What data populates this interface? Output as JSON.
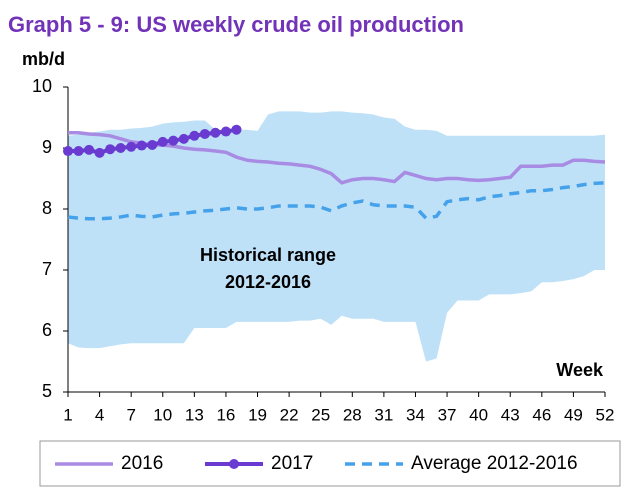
{
  "chart_data": {
    "type": "line",
    "title": "Graph 5 - 9: US weekly crude oil production",
    "y_label": "mb/d",
    "x_label": "Week",
    "annotations": [
      "Historical range",
      "2012-2016"
    ],
    "x": [
      1,
      2,
      3,
      4,
      5,
      6,
      7,
      8,
      9,
      10,
      11,
      12,
      13,
      14,
      15,
      16,
      17,
      18,
      19,
      20,
      21,
      22,
      23,
      24,
      25,
      26,
      27,
      28,
      29,
      30,
      31,
      32,
      33,
      34,
      35,
      36,
      37,
      38,
      39,
      40,
      41,
      42,
      43,
      44,
      45,
      46,
      47,
      48,
      49,
      50,
      51,
      52
    ],
    "xlim": [
      1,
      52
    ],
    "xticks": [
      1,
      4,
      7,
      10,
      13,
      16,
      19,
      22,
      25,
      28,
      31,
      34,
      37,
      40,
      43,
      46,
      49,
      52
    ],
    "ylim": [
      5,
      10
    ],
    "yticks": [
      5,
      6,
      7,
      8,
      9,
      10
    ],
    "range": {
      "color": "#bfe1f8",
      "upper": [
        9.2,
        9.22,
        9.25,
        9.27,
        9.3,
        9.3,
        9.32,
        9.33,
        9.35,
        9.4,
        9.42,
        9.43,
        9.45,
        9.45,
        9.3,
        9.3,
        9.3,
        9.3,
        9.28,
        9.55,
        9.6,
        9.6,
        9.6,
        9.58,
        9.58,
        9.6,
        9.6,
        9.58,
        9.57,
        9.55,
        9.5,
        9.48,
        9.35,
        9.3,
        9.3,
        9.28,
        9.2,
        9.2,
        9.2,
        9.2,
        9.2,
        9.2,
        9.2,
        9.2,
        9.2,
        9.2,
        9.2,
        9.2,
        9.2,
        9.2,
        9.2,
        9.22
      ],
      "lower": [
        5.8,
        5.73,
        5.72,
        5.72,
        5.75,
        5.78,
        5.8,
        5.8,
        5.8,
        5.8,
        5.8,
        5.8,
        6.05,
        6.05,
        6.05,
        6.05,
        6.15,
        6.15,
        6.15,
        6.15,
        6.15,
        6.15,
        6.17,
        6.17,
        6.2,
        6.1,
        6.25,
        6.2,
        6.2,
        6.2,
        6.15,
        6.15,
        6.15,
        6.15,
        5.5,
        5.55,
        6.3,
        6.5,
        6.5,
        6.5,
        6.6,
        6.6,
        6.6,
        6.62,
        6.65,
        6.8,
        6.8,
        6.82,
        6.85,
        6.9,
        7.0,
        7.0
      ]
    },
    "series": [
      {
        "name": "2016",
        "color": "#a88be2",
        "style": "solid",
        "markers": false,
        "values": [
          9.25,
          9.25,
          9.23,
          9.22,
          9.2,
          9.15,
          9.1,
          9.08,
          9.05,
          9.05,
          9.03,
          9.0,
          8.98,
          8.97,
          8.95,
          8.93,
          8.85,
          8.8,
          8.78,
          8.77,
          8.75,
          8.74,
          8.72,
          8.7,
          8.65,
          8.58,
          8.43,
          8.48,
          8.5,
          8.5,
          8.48,
          8.45,
          8.6,
          8.55,
          8.5,
          8.48,
          8.5,
          8.5,
          8.48,
          8.47,
          8.48,
          8.5,
          8.52,
          8.7,
          8.7,
          8.7,
          8.72,
          8.72,
          8.8,
          8.8,
          8.78,
          8.77
        ]
      },
      {
        "name": "2017",
        "color": "#6a3bd0",
        "style": "solid",
        "markers": true,
        "values": [
          8.95,
          8.95,
          8.97,
          8.92,
          8.98,
          9.0,
          9.02,
          9.04,
          9.05,
          9.1,
          9.12,
          9.15,
          9.2,
          9.23,
          9.25,
          9.27,
          9.3,
          null,
          null,
          null,
          null,
          null,
          null,
          null,
          null,
          null,
          null,
          null,
          null,
          null,
          null,
          null,
          null,
          null,
          null,
          null,
          null,
          null,
          null,
          null,
          null,
          null,
          null,
          null,
          null,
          null,
          null,
          null,
          null,
          null,
          null,
          null
        ]
      },
      {
        "name": "Average 2012-2016",
        "color": "#45a2ea",
        "style": "dashed",
        "markers": false,
        "values": [
          7.87,
          7.85,
          7.84,
          7.84,
          7.85,
          7.87,
          7.9,
          7.88,
          7.87,
          7.9,
          7.92,
          7.93,
          7.95,
          7.97,
          7.98,
          8.0,
          8.02,
          8.0,
          8.0,
          8.02,
          8.05,
          8.05,
          8.05,
          8.05,
          8.03,
          7.97,
          8.05,
          8.1,
          8.13,
          8.07,
          8.05,
          8.05,
          8.05,
          8.03,
          7.85,
          7.88,
          8.12,
          8.15,
          8.17,
          8.15,
          8.2,
          8.22,
          8.25,
          8.27,
          8.3,
          8.3,
          8.32,
          8.35,
          8.37,
          8.4,
          8.42,
          8.43
        ]
      }
    ]
  }
}
